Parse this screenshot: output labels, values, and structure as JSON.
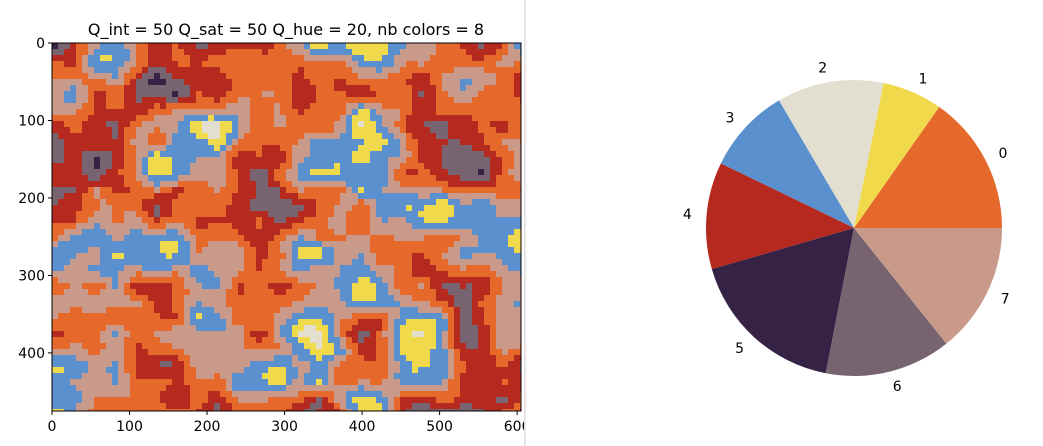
{
  "chart_data": [
    {
      "type": "heatmap",
      "title": "Q_int = 50 Q_sat = 50 Q_hue = 20, nb colors = 8",
      "xlabel": "",
      "ylabel": "",
      "xlim": [
        0,
        605
      ],
      "ylim": [
        475,
        0
      ],
      "x_ticks": [
        "0",
        "100",
        "200",
        "300",
        "400",
        "500",
        "600"
      ],
      "y_ticks": [
        "0",
        "100",
        "200",
        "300",
        "400"
      ],
      "palette": [
        "#e5692b",
        "#f0d94a",
        "#e2dfd0",
        "#5a90cd",
        "#b5291f",
        "#352244",
        "#786470",
        "#c99989"
      ]
    },
    {
      "type": "pie",
      "title": "",
      "labels": [
        "0",
        "1",
        "2",
        "3",
        "4",
        "5",
        "6",
        "7"
      ],
      "values": [
        0.158,
        0.068,
        0.121,
        0.097,
        0.121,
        0.181,
        0.143,
        0.148
      ],
      "colors": [
        "#e5692b",
        "#f0d94a",
        "#e2dfd0",
        "#5a90cd",
        "#b5291f",
        "#352244",
        "#786470",
        "#c99989"
      ],
      "start_angle": 0,
      "direction": "counterclockwise"
    }
  ]
}
